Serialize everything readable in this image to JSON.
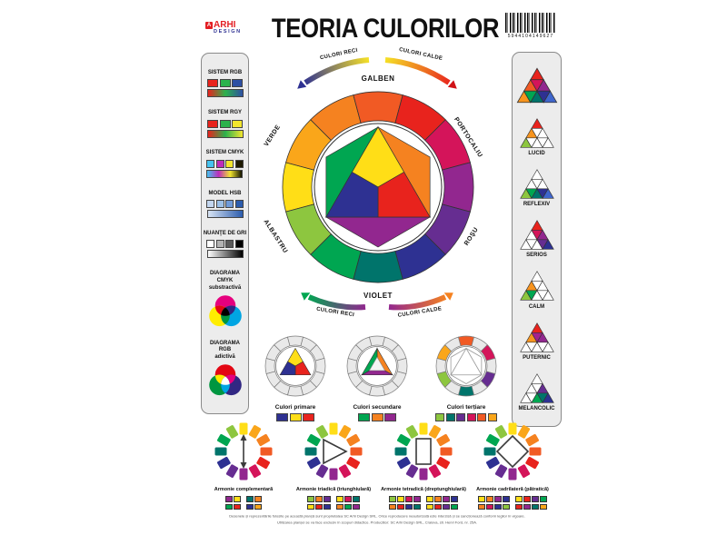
{
  "header": {
    "title": "TEORIA CULORILOR",
    "logo": {
      "icon": "A",
      "top": "ARHI",
      "bottom": "DESIGN"
    },
    "barcode_digits": "5944104149627"
  },
  "palette": {
    "wheel": [
      "#FFDE17",
      "#FAA61A",
      "#F58220",
      "#F15A24",
      "#E8231D",
      "#D4145A",
      "#92278F",
      "#662D91",
      "#2E3192",
      "#00746B",
      "#00A651",
      "#8DC63F"
    ],
    "tertiary": [
      "#FAA61A",
      "#F15A24",
      "#D4145A",
      "#662D91",
      "#00746B",
      "#8DC63F"
    ],
    "primary": {
      "yellow": "#FFDE17",
      "red": "#E8231D",
      "blue": "#2E3192"
    },
    "secondary": {
      "orange": "#F58220",
      "violet": "#92278F",
      "green": "#00A651"
    }
  },
  "arrows": {
    "reci": "CULORI RECI",
    "calde": "CULORI CALDE"
  },
  "wheel_labels": {
    "top": "GALBEN",
    "top_right": "PORTOCALIU",
    "bottom_right": "ROŞU",
    "bottom": "VIOLET",
    "bottom_left": "ALBASTRU",
    "top_left": "VERDE"
  },
  "left_panel": {
    "items": [
      {
        "label": "SISTEM RGB",
        "swatches": [
          "#E8231D",
          "#2BB24C",
          "#2E4FA3"
        ],
        "gradient": [
          "#E8231D",
          "#2BB24C",
          "#2E4FA3"
        ]
      },
      {
        "label": "SISTEM RGY",
        "swatches": [
          "#E8231D",
          "#2BB24C",
          "#F2E52E"
        ],
        "gradient": [
          "#E8231D",
          "#2BB24C",
          "#F2E52E"
        ]
      },
      {
        "label": "SISTEM CMYK",
        "swatches": [
          "#45C2F0",
          "#BE2BBB",
          "#F2E52E",
          "#1E1A00"
        ],
        "gradient": [
          "#45C2F0",
          "#BE2BBB",
          "#F2E52E",
          "#141400"
        ]
      },
      {
        "label": "MODEL HSB",
        "swatches": [
          "#C3D6EF",
          "#9CC0E8",
          "#6F9AD8",
          "#2B5CAD"
        ],
        "gradient": [
          "#D8E4F4",
          "#2B5CAD"
        ]
      },
      {
        "label": "NUANŢE DE GRI",
        "swatches": [
          "#FFFFFF",
          "#B3B3B3",
          "#5A5A5A",
          "#000000"
        ],
        "gradient": [
          "#FFFFFF",
          "#000000"
        ]
      }
    ],
    "venns": [
      {
        "label": "DIAGRAMA\nCMYK\nsubstractivă",
        "top": "#E6007E",
        "left": "#FFED00",
        "right": "#00A5E3",
        "top_left": "#E30613",
        "top_right": "#312783",
        "left_right": "#009640",
        "center": "#000000"
      },
      {
        "label": "DIAGRAMA\nRGB\nadictivă",
        "top": "#E30613",
        "left": "#009640",
        "right": "#312783",
        "top_left": "#FFED00",
        "top_right": "#E6007E",
        "left_right": "#00A5E3",
        "center": "#FFFFFF"
      }
    ]
  },
  "right_panel": {
    "triangles": [
      {
        "label": "",
        "cells": [
          "#E8231D",
          "#F15A24",
          "#D4145A",
          "#92278F",
          "#F7941E",
          "#00A651",
          "#00746B",
          "#2E3192",
          "#3F66CC"
        ]
      },
      {
        "label": "LUCID",
        "cells": [
          "#E8231D",
          "#F7941E",
          "#FFFFFF",
          "#FFFFFF",
          "#8DC63F",
          "#FFFFFF",
          "#FFFFFF",
          "#FFFFFF",
          "#FFFFFF"
        ]
      },
      {
        "label": "REFLEXIV",
        "cells": [
          "#FFFFFF",
          "#FFFFFF",
          "#FFFFFF",
          "#FFFFFF",
          "#8DC63F",
          "#00A651",
          "#00746B",
          "#2E3192",
          "#3F66CC"
        ]
      },
      {
        "label": "SERIOS",
        "cells": [
          "#E8231D",
          "#FFFFFF",
          "#D4145A",
          "#92278F",
          "#FFFFFF",
          "#FFFFFF",
          "#FFFFFF",
          "#662D91",
          "#2E3192"
        ]
      },
      {
        "label": "CALM",
        "cells": [
          "#FFFFFF",
          "#F7941E",
          "#FFFFFF",
          "#FFFFFF",
          "#8DC63F",
          "#00A651",
          "#FFFFFF",
          "#FFFFFF",
          "#FFFFFF"
        ]
      },
      {
        "label": "PUTERNIC",
        "cells": [
          "#E8231D",
          "#F7941E",
          "#A3238E",
          "#92278F",
          "#FFFFFF",
          "#FFFFFF",
          "#FFFFFF",
          "#FFFFFF",
          "#FFFFFF"
        ]
      },
      {
        "label": "MELANCOLIC",
        "cells": [
          "#FFFFFF",
          "#FFFFFF",
          "#FFFFFF",
          "#662D91",
          "#FFFFFF",
          "#FFFFFF",
          "#00A651",
          "#00746B",
          "#2E3192"
        ]
      }
    ]
  },
  "small_wheels": [
    {
      "label": "Culori primare",
      "type": "primare",
      "swatches": [
        "#2E3192",
        "#FFDE17",
        "#E8231D"
      ]
    },
    {
      "label": "Culori secundare",
      "type": "secundare",
      "swatches": [
        "#00A651",
        "#F58220",
        "#92278F"
      ]
    },
    {
      "label": "Culori terțiare",
      "type": "tertiare",
      "swatches": [
        "#8DC63F",
        "#00746B",
        "#662D91",
        "#D4145A",
        "#F15A24",
        "#FAA61A"
      ]
    }
  ],
  "harmonies": [
    {
      "label": "Armonie complementară",
      "shape": "arrow",
      "rows": [
        [
          [
            "#92278F",
            "#FFDE17"
          ],
          [
            "#00746B",
            "#F58220"
          ]
        ],
        [
          [
            "#00A651",
            "#E8231D"
          ],
          [
            "#2E3192",
            "#FAA61A"
          ]
        ]
      ]
    },
    {
      "label": "Armonie triadică (triunghiulară)",
      "shape": "triangle",
      "rows": [
        [
          [
            "#8DC63F",
            "#F58220",
            "#662D91"
          ],
          [
            "#FFDE17",
            "#D4145A",
            "#00746B"
          ]
        ],
        [
          [
            "#FFDE17",
            "#E8231D",
            "#2E3192"
          ],
          [
            "#F58220",
            "#00A651",
            "#92278F"
          ]
        ]
      ]
    },
    {
      "label": "Armonie tetradică (dreptunghiulară)",
      "shape": "rectangle",
      "rows": [
        [
          [
            "#8DC63F",
            "#FFDE17",
            "#D4145A",
            "#92278F"
          ],
          [
            "#FFDE17",
            "#F58220",
            "#92278F",
            "#2E3192"
          ]
        ],
        [
          [
            "#F58220",
            "#E8231D",
            "#2E3192",
            "#00746B"
          ],
          [
            "#FFDE17",
            "#E8231D",
            "#662D91",
            "#00A651"
          ]
        ]
      ]
    },
    {
      "label": "Armonie cadrilateră (pătratică)",
      "shape": "diamond",
      "rows": [
        [
          [
            "#FFDE17",
            "#F58220",
            "#92278F",
            "#2E3192"
          ],
          [
            "#FFDE17",
            "#E8231D",
            "#662D91",
            "#00A651"
          ]
        ],
        [
          [
            "#F58220",
            "#D4145A",
            "#2E3192",
            "#8DC63F"
          ],
          [
            "#E8231D",
            "#92278F",
            "#00746B",
            "#FAA61A"
          ]
        ]
      ]
    }
  ],
  "footer": {
    "line1": "Desenele și reprezentările folosite pe această planșă sunt proprietatea SC Arhi Design SRL. Orice reproducere neautorizată este interzisă și se sancționează conform legilor în vigoare.",
    "line2": "Utilizarea planșei se va face exclusiv în scopuri didactice. Producător: SC Arhi Design SRL, Craiova, str. Henri Ford, nr. 25A."
  }
}
